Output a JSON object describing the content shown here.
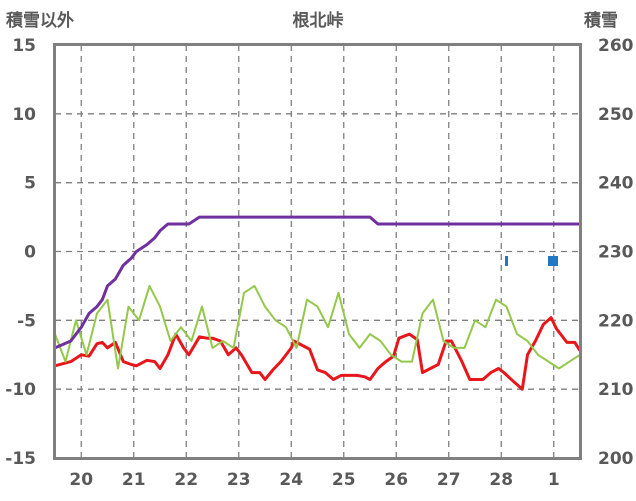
{
  "chart_data": {
    "type": "line",
    "title": "根北峠",
    "left_axis_label": "積雪以外",
    "right_axis_label": "積雪",
    "x_categories": [
      "20",
      "21",
      "22",
      "23",
      "24",
      "25",
      "26",
      "27",
      "28",
      "1"
    ],
    "y_left": {
      "min": -15,
      "max": 15,
      "ticks": [
        15,
        10,
        5,
        0,
        -5,
        -10,
        -15
      ]
    },
    "y_right": {
      "min": 200,
      "max": 260,
      "ticks": [
        260,
        250,
        240,
        230,
        220,
        210,
        200
      ]
    },
    "grid": true,
    "series": [
      {
        "color": "#e8161b",
        "axis": "left",
        "x": [
          0,
          0.3,
          0.5,
          0.65,
          0.8,
          0.9,
          1.0,
          1.15,
          1.3,
          1.45,
          1.55,
          1.75,
          1.9,
          2.0,
          2.15,
          2.3,
          2.45,
          2.55,
          2.75,
          2.9,
          3.0,
          3.15,
          3.3,
          3.45,
          3.55,
          3.75,
          3.9,
          4.0,
          4.15,
          4.3,
          4.5,
          4.55,
          4.75,
          4.85,
          5.0,
          5.15,
          5.3,
          5.45,
          5.55,
          5.75,
          5.9,
          6.0,
          6.15,
          6.3,
          6.45,
          6.55,
          6.75,
          6.9,
          7.0,
          7.15,
          7.3,
          7.45,
          7.55,
          7.75,
          7.9,
          8.0,
          8.15,
          8.3,
          8.45,
          8.55,
          8.75,
          8.9,
          9.0,
          9.15,
          9.3,
          9.45,
          9.55,
          9.75,
          9.9,
          10.0
        ],
        "y": [
          -8.3,
          -8.0,
          -7.5,
          -7.6,
          -6.7,
          -6.6,
          -7.0,
          -6.6,
          -8.0,
          -8.2,
          -8.3,
          -7.9,
          -8.0,
          -8.5,
          -7.5,
          -6.0,
          -7.0,
          -7.5,
          -6.2,
          -6.3,
          -6.3,
          -6.5,
          -7.5,
          -7.0,
          -7.5,
          -8.8,
          -8.8,
          -9.3,
          -8.6,
          -8.0,
          -7.0,
          -6.5,
          -6.9,
          -7.1,
          -8.6,
          -8.8,
          -9.3,
          -9.0,
          -9.0,
          -9.0,
          -9.1,
          -9.3,
          -8.5,
          -8.0,
          -7.6,
          -6.3,
          -6.0,
          -6.4,
          -8.8,
          -8.5,
          -8.2,
          -6.5,
          -6.5,
          -8.0,
          -9.3,
          -9.3,
          -9.3,
          -8.8,
          -8.5,
          -8.8,
          -9.5,
          -10.0,
          -7.5,
          -6.5,
          -5.3,
          -4.8,
          -5.6,
          -6.6,
          -6.6,
          -7.2
        ]
      },
      {
        "color": "#94c84a",
        "axis": "left",
        "x": [
          0,
          0.2,
          0.4,
          0.6,
          0.8,
          1.0,
          1.2,
          1.4,
          1.6,
          1.8,
          2.0,
          2.2,
          2.4,
          2.6,
          2.8,
          3.0,
          3.2,
          3.4,
          3.6,
          3.8,
          4.0,
          4.2,
          4.4,
          4.6,
          4.8,
          5.0,
          5.2,
          5.4,
          5.6,
          5.8,
          6.0,
          6.2,
          6.4,
          6.6,
          6.8,
          7.0,
          7.2,
          7.4,
          7.6,
          7.8,
          8.0,
          8.2,
          8.4,
          8.6,
          8.8,
          9.0,
          9.2,
          9.4,
          9.6,
          9.8,
          10.0
        ],
        "y": [
          -6.0,
          -8.0,
          -5.0,
          -7.5,
          -4.5,
          -3.5,
          -8.5,
          -4.0,
          -5.0,
          -2.5,
          -4.0,
          -6.5,
          -5.5,
          -6.5,
          -4.0,
          -7.0,
          -6.5,
          -7.0,
          -3.0,
          -2.5,
          -4.0,
          -5.0,
          -5.5,
          -7.0,
          -3.5,
          -4.0,
          -5.5,
          -3.0,
          -6.0,
          -7.0,
          -6.0,
          -6.5,
          -7.5,
          -8.0,
          -8.0,
          -4.5,
          -3.5,
          -6.5,
          -7.0,
          -7.0,
          -5.0,
          -5.5,
          -3.5,
          -4.0,
          -6.0,
          -6.5,
          -7.5,
          -8.0,
          -8.5,
          -8.0,
          -7.5
        ]
      },
      {
        "color": "#7030a0",
        "axis": "right",
        "x": [
          0,
          0.3,
          0.5,
          0.65,
          0.8,
          0.9,
          1.0,
          1.15,
          1.3,
          1.45,
          1.55,
          1.75,
          1.9,
          2.0,
          2.15,
          2.3,
          2.45,
          2.55,
          2.75,
          2.9,
          3.0,
          3.15,
          3.3,
          3.45,
          3.55,
          3.75,
          3.9,
          4.0,
          4.15,
          4.3,
          4.5,
          4.55,
          4.75,
          4.85,
          5.0,
          5.15,
          5.3,
          5.45,
          5.55,
          5.75,
          5.9,
          6.0,
          6.15,
          6.3,
          6.45,
          6.55,
          6.75,
          6.9,
          7.0,
          7.15,
          7.3,
          7.45,
          7.55,
          7.75,
          7.9,
          8.0,
          8.15,
          8.3,
          8.45,
          8.55,
          8.75,
          8.9,
          9.0,
          9.15,
          9.3,
          9.45,
          9.55,
          9.75,
          9.9,
          10.0
        ],
        "y": [
          216,
          217,
          219,
          221,
          222,
          223,
          225,
          226,
          228,
          229,
          230,
          231,
          232,
          233,
          234,
          234,
          234,
          234,
          235,
          235,
          235,
          235,
          235,
          235,
          235,
          235,
          235,
          235,
          235,
          235,
          235,
          235,
          235,
          235,
          235,
          235,
          235,
          235,
          235,
          235,
          235,
          235,
          234,
          234,
          234,
          234,
          234,
          234,
          234,
          234,
          234,
          234,
          234,
          234,
          234,
          234,
          234,
          234,
          234,
          234,
          234,
          234,
          234,
          234,
          234,
          234,
          234,
          234,
          234,
          234
        ]
      }
    ]
  }
}
